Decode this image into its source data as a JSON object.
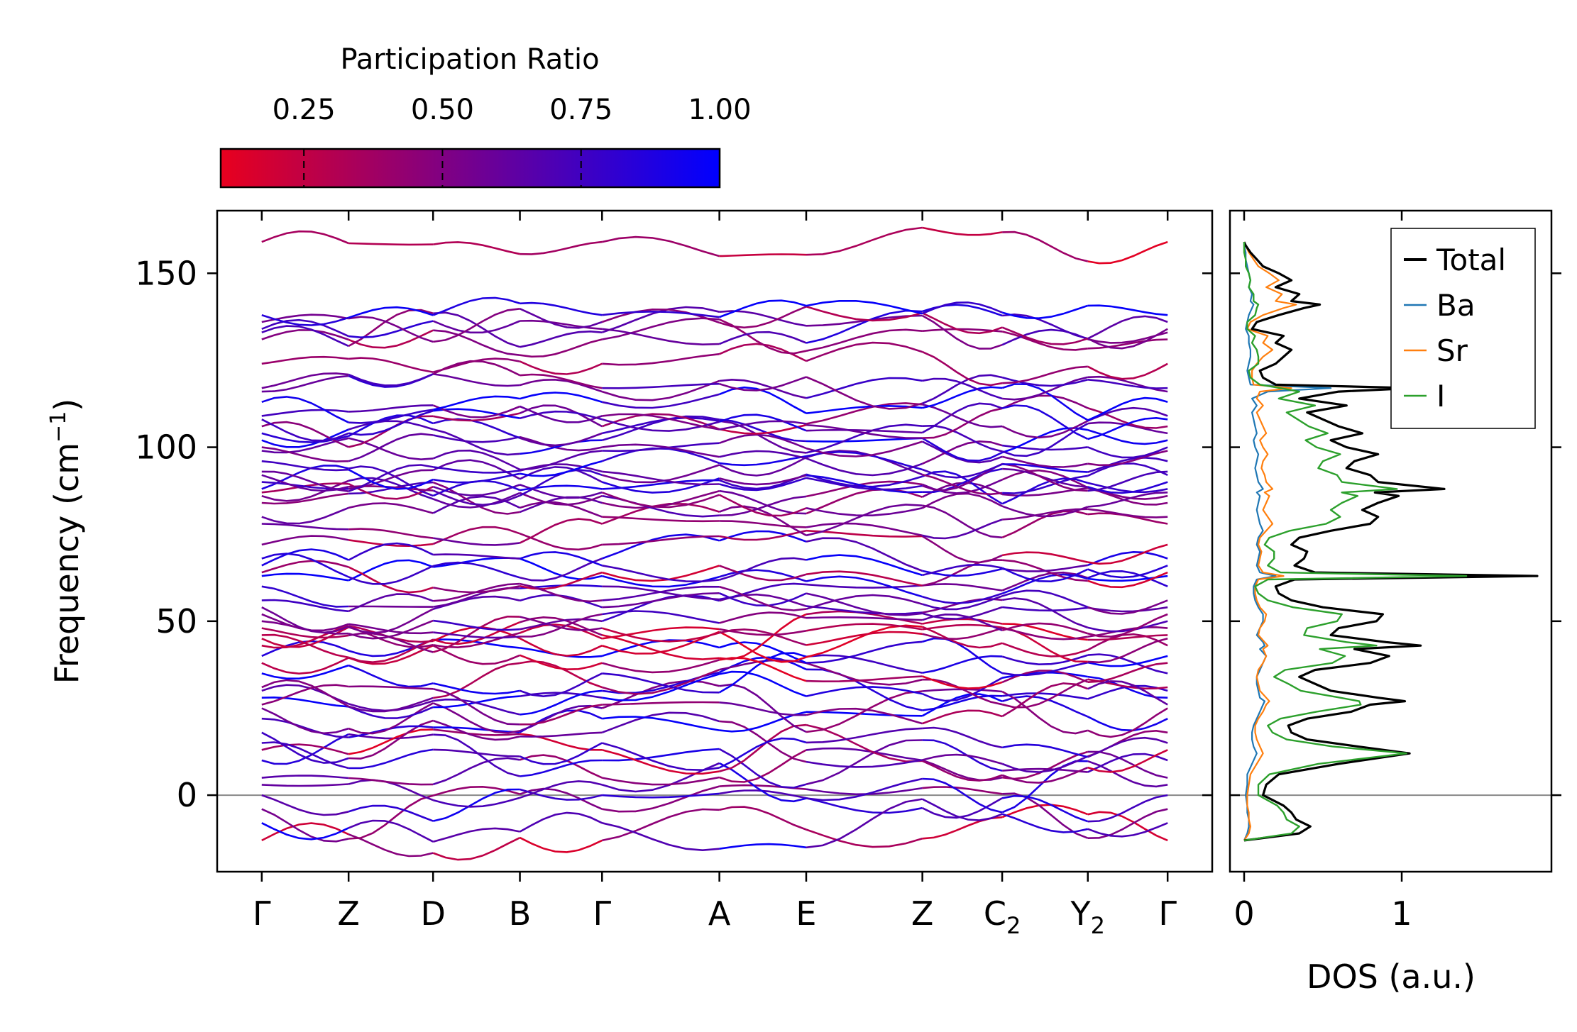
{
  "chart_data": [
    {
      "type": "line",
      "name": "phonon_band_structure",
      "ylabel": "Frequency (cm$^{-1}$)",
      "ylabel_main": "Frequency (cm",
      "ylabel_sup": "−1",
      "ylabel_close": ")",
      "ylim": [
        -22,
        168
      ],
      "yticks": [
        0,
        50,
        100,
        150
      ],
      "zero_line": 0,
      "kpath": [
        {
          "label": "Γ",
          "sub": "",
          "x": 0.0
        },
        {
          "label": "Z",
          "sub": "",
          "x": 0.74
        },
        {
          "label": "D",
          "sub": "",
          "x": 1.46
        },
        {
          "label": "B",
          "sub": "",
          "x": 2.2
        },
        {
          "label": "Γ",
          "sub": "",
          "x": 2.9
        },
        {
          "label": "A",
          "sub": "",
          "x": 3.9
        },
        {
          "label": "E",
          "sub": "",
          "x": 4.64
        },
        {
          "label": "Z",
          "sub": "",
          "x": 5.63
        },
        {
          "label": "C",
          "sub": "2",
          "x": 6.31
        },
        {
          "label": "Y",
          "sub": "2",
          "x": 7.04
        },
        {
          "label": "Γ",
          "sub": "",
          "x": 7.72
        }
      ],
      "xlim": [
        -0.38,
        8.1
      ],
      "color_by": "participation_ratio",
      "band_samples_per_segment": 7,
      "band_count_shown": 60
    },
    {
      "type": "line",
      "name": "density_of_states",
      "xlabel": "DOS (a.u.)",
      "xlim": [
        -0.09,
        1.95
      ],
      "xticks": [
        0,
        1
      ],
      "ylim": [
        -22,
        168
      ],
      "series": [
        {
          "name": "Total",
          "color": "#000000"
        },
        {
          "name": "Ba",
          "color": "#1f77b4"
        },
        {
          "name": "Sr",
          "color": "#ff7f0e"
        },
        {
          "name": "I",
          "color": "#2ca02c"
        }
      ],
      "y": [
        -13,
        -11,
        -9,
        -7,
        -5,
        -3,
        0,
        3,
        6,
        9,
        12,
        14,
        16,
        18,
        20,
        22,
        24,
        26,
        27,
        28,
        30,
        32,
        34,
        36,
        38,
        40,
        42,
        43,
        44,
        46,
        48,
        50,
        52,
        54,
        56,
        58,
        60,
        62,
        63,
        64,
        66,
        68,
        70,
        72,
        74,
        76,
        78,
        80,
        82,
        84,
        86,
        87,
        88,
        90,
        92,
        94,
        96,
        98,
        100,
        102,
        104,
        106,
        108,
        110,
        112,
        114,
        116,
        117,
        118,
        120,
        122,
        124,
        126,
        128,
        130,
        132,
        134,
        136,
        138,
        140,
        141,
        142,
        144,
        146,
        148,
        150,
        152,
        154,
        156,
        158,
        159
      ],
      "total": [
        0.0,
        0.35,
        0.42,
        0.33,
        0.3,
        0.25,
        0.12,
        0.14,
        0.22,
        0.6,
        1.05,
        0.72,
        0.4,
        0.3,
        0.28,
        0.4,
        0.68,
        0.8,
        1.02,
        0.85,
        0.55,
        0.45,
        0.35,
        0.45,
        0.8,
        0.92,
        0.7,
        1.12,
        0.9,
        0.55,
        0.6,
        0.84,
        0.88,
        0.5,
        0.3,
        0.22,
        0.2,
        0.32,
        1.86,
        0.45,
        0.32,
        0.38,
        0.4,
        0.3,
        0.35,
        0.55,
        0.8,
        0.85,
        0.75,
        0.85,
        0.98,
        0.83,
        1.27,
        0.85,
        0.8,
        0.65,
        0.7,
        0.85,
        0.65,
        0.55,
        0.75,
        0.6,
        0.5,
        0.4,
        0.65,
        0.35,
        0.6,
        1.08,
        0.2,
        0.12,
        0.1,
        0.2,
        0.25,
        0.3,
        0.2,
        0.25,
        0.05,
        0.08,
        0.22,
        0.38,
        0.48,
        0.3,
        0.35,
        0.2,
        0.3,
        0.22,
        0.12,
        0.08,
        0.04,
        0.01,
        0.0
      ],
      "Ba": [
        0.0,
        0.02,
        0.03,
        0.03,
        0.02,
        0.02,
        0.01,
        0.02,
        0.02,
        0.05,
        0.08,
        0.06,
        0.05,
        0.05,
        0.06,
        0.08,
        0.1,
        0.12,
        0.13,
        0.1,
        0.09,
        0.08,
        0.08,
        0.1,
        0.12,
        0.14,
        0.1,
        0.13,
        0.12,
        0.08,
        0.1,
        0.12,
        0.12,
        0.09,
        0.07,
        0.06,
        0.06,
        0.08,
        0.2,
        0.1,
        0.08,
        0.09,
        0.1,
        0.08,
        0.09,
        0.12,
        0.1,
        0.09,
        0.08,
        0.09,
        0.1,
        0.08,
        0.12,
        0.09,
        0.08,
        0.07,
        0.08,
        0.09,
        0.07,
        0.06,
        0.08,
        0.07,
        0.06,
        0.05,
        0.08,
        0.05,
        0.15,
        0.55,
        0.04,
        0.03,
        0.02,
        0.03,
        0.04,
        0.04,
        0.03,
        0.03,
        0.01,
        0.02,
        0.03,
        0.05,
        0.06,
        0.04,
        0.05,
        0.03,
        0.04,
        0.03,
        0.02,
        0.01,
        0.01,
        0.0,
        0.0
      ],
      "Sr": [
        0.0,
        0.03,
        0.04,
        0.03,
        0.03,
        0.02,
        0.02,
        0.03,
        0.04,
        0.08,
        0.12,
        0.1,
        0.08,
        0.07,
        0.07,
        0.09,
        0.12,
        0.14,
        0.16,
        0.14,
        0.1,
        0.09,
        0.08,
        0.09,
        0.12,
        0.14,
        0.12,
        0.15,
        0.13,
        0.09,
        0.1,
        0.13,
        0.14,
        0.1,
        0.08,
        0.07,
        0.07,
        0.09,
        0.25,
        0.12,
        0.09,
        0.1,
        0.11,
        0.09,
        0.1,
        0.14,
        0.18,
        0.15,
        0.12,
        0.14,
        0.16,
        0.13,
        0.18,
        0.14,
        0.13,
        0.11,
        0.12,
        0.15,
        0.12,
        0.1,
        0.14,
        0.12,
        0.1,
        0.08,
        0.12,
        0.08,
        0.1,
        0.3,
        0.06,
        0.05,
        0.05,
        0.08,
        0.12,
        0.18,
        0.12,
        0.15,
        0.02,
        0.04,
        0.12,
        0.25,
        0.33,
        0.2,
        0.24,
        0.14,
        0.22,
        0.16,
        0.09,
        0.06,
        0.03,
        0.01,
        0.0
      ],
      "I": [
        0.0,
        0.3,
        0.35,
        0.27,
        0.25,
        0.21,
        0.09,
        0.09,
        0.16,
        0.47,
        1.03,
        0.56,
        0.27,
        0.18,
        0.15,
        0.23,
        0.46,
        0.74,
        0.73,
        0.61,
        0.36,
        0.28,
        0.19,
        0.26,
        0.56,
        0.64,
        0.48,
        0.84,
        0.65,
        0.38,
        0.4,
        0.59,
        0.62,
        0.31,
        0.15,
        0.09,
        0.07,
        0.15,
        1.41,
        0.23,
        0.15,
        0.19,
        0.19,
        0.13,
        0.16,
        0.29,
        0.52,
        0.61,
        0.55,
        0.62,
        0.72,
        0.62,
        0.97,
        0.62,
        0.59,
        0.47,
        0.5,
        0.61,
        0.46,
        0.39,
        0.53,
        0.41,
        0.34,
        0.27,
        0.45,
        0.22,
        0.35,
        0.23,
        0.1,
        0.04,
        0.03,
        0.09,
        0.09,
        0.08,
        0.05,
        0.07,
        0.02,
        0.02,
        0.07,
        0.08,
        0.09,
        0.06,
        0.06,
        0.03,
        0.04,
        0.03,
        0.01,
        0.01,
        0.0,
        0.0,
        0.0
      ]
    }
  ],
  "colorbar": {
    "title": "Participation Ratio",
    "tick_labels": [
      "0.25",
      "0.50",
      "0.75",
      "1.00"
    ],
    "tick_values": [
      0.25,
      0.5,
      0.75,
      1.0
    ],
    "range": [
      0.1,
      1.0
    ],
    "color_low": "#e8001e",
    "color_high": "#0000ff"
  },
  "legend": [
    {
      "label": "Total",
      "color": "#000000"
    },
    {
      "label": "Ba",
      "color": "#1f77b4"
    },
    {
      "label": "Sr",
      "color": "#ff7f0e"
    },
    {
      "label": "I",
      "color": "#2ca02c"
    }
  ]
}
